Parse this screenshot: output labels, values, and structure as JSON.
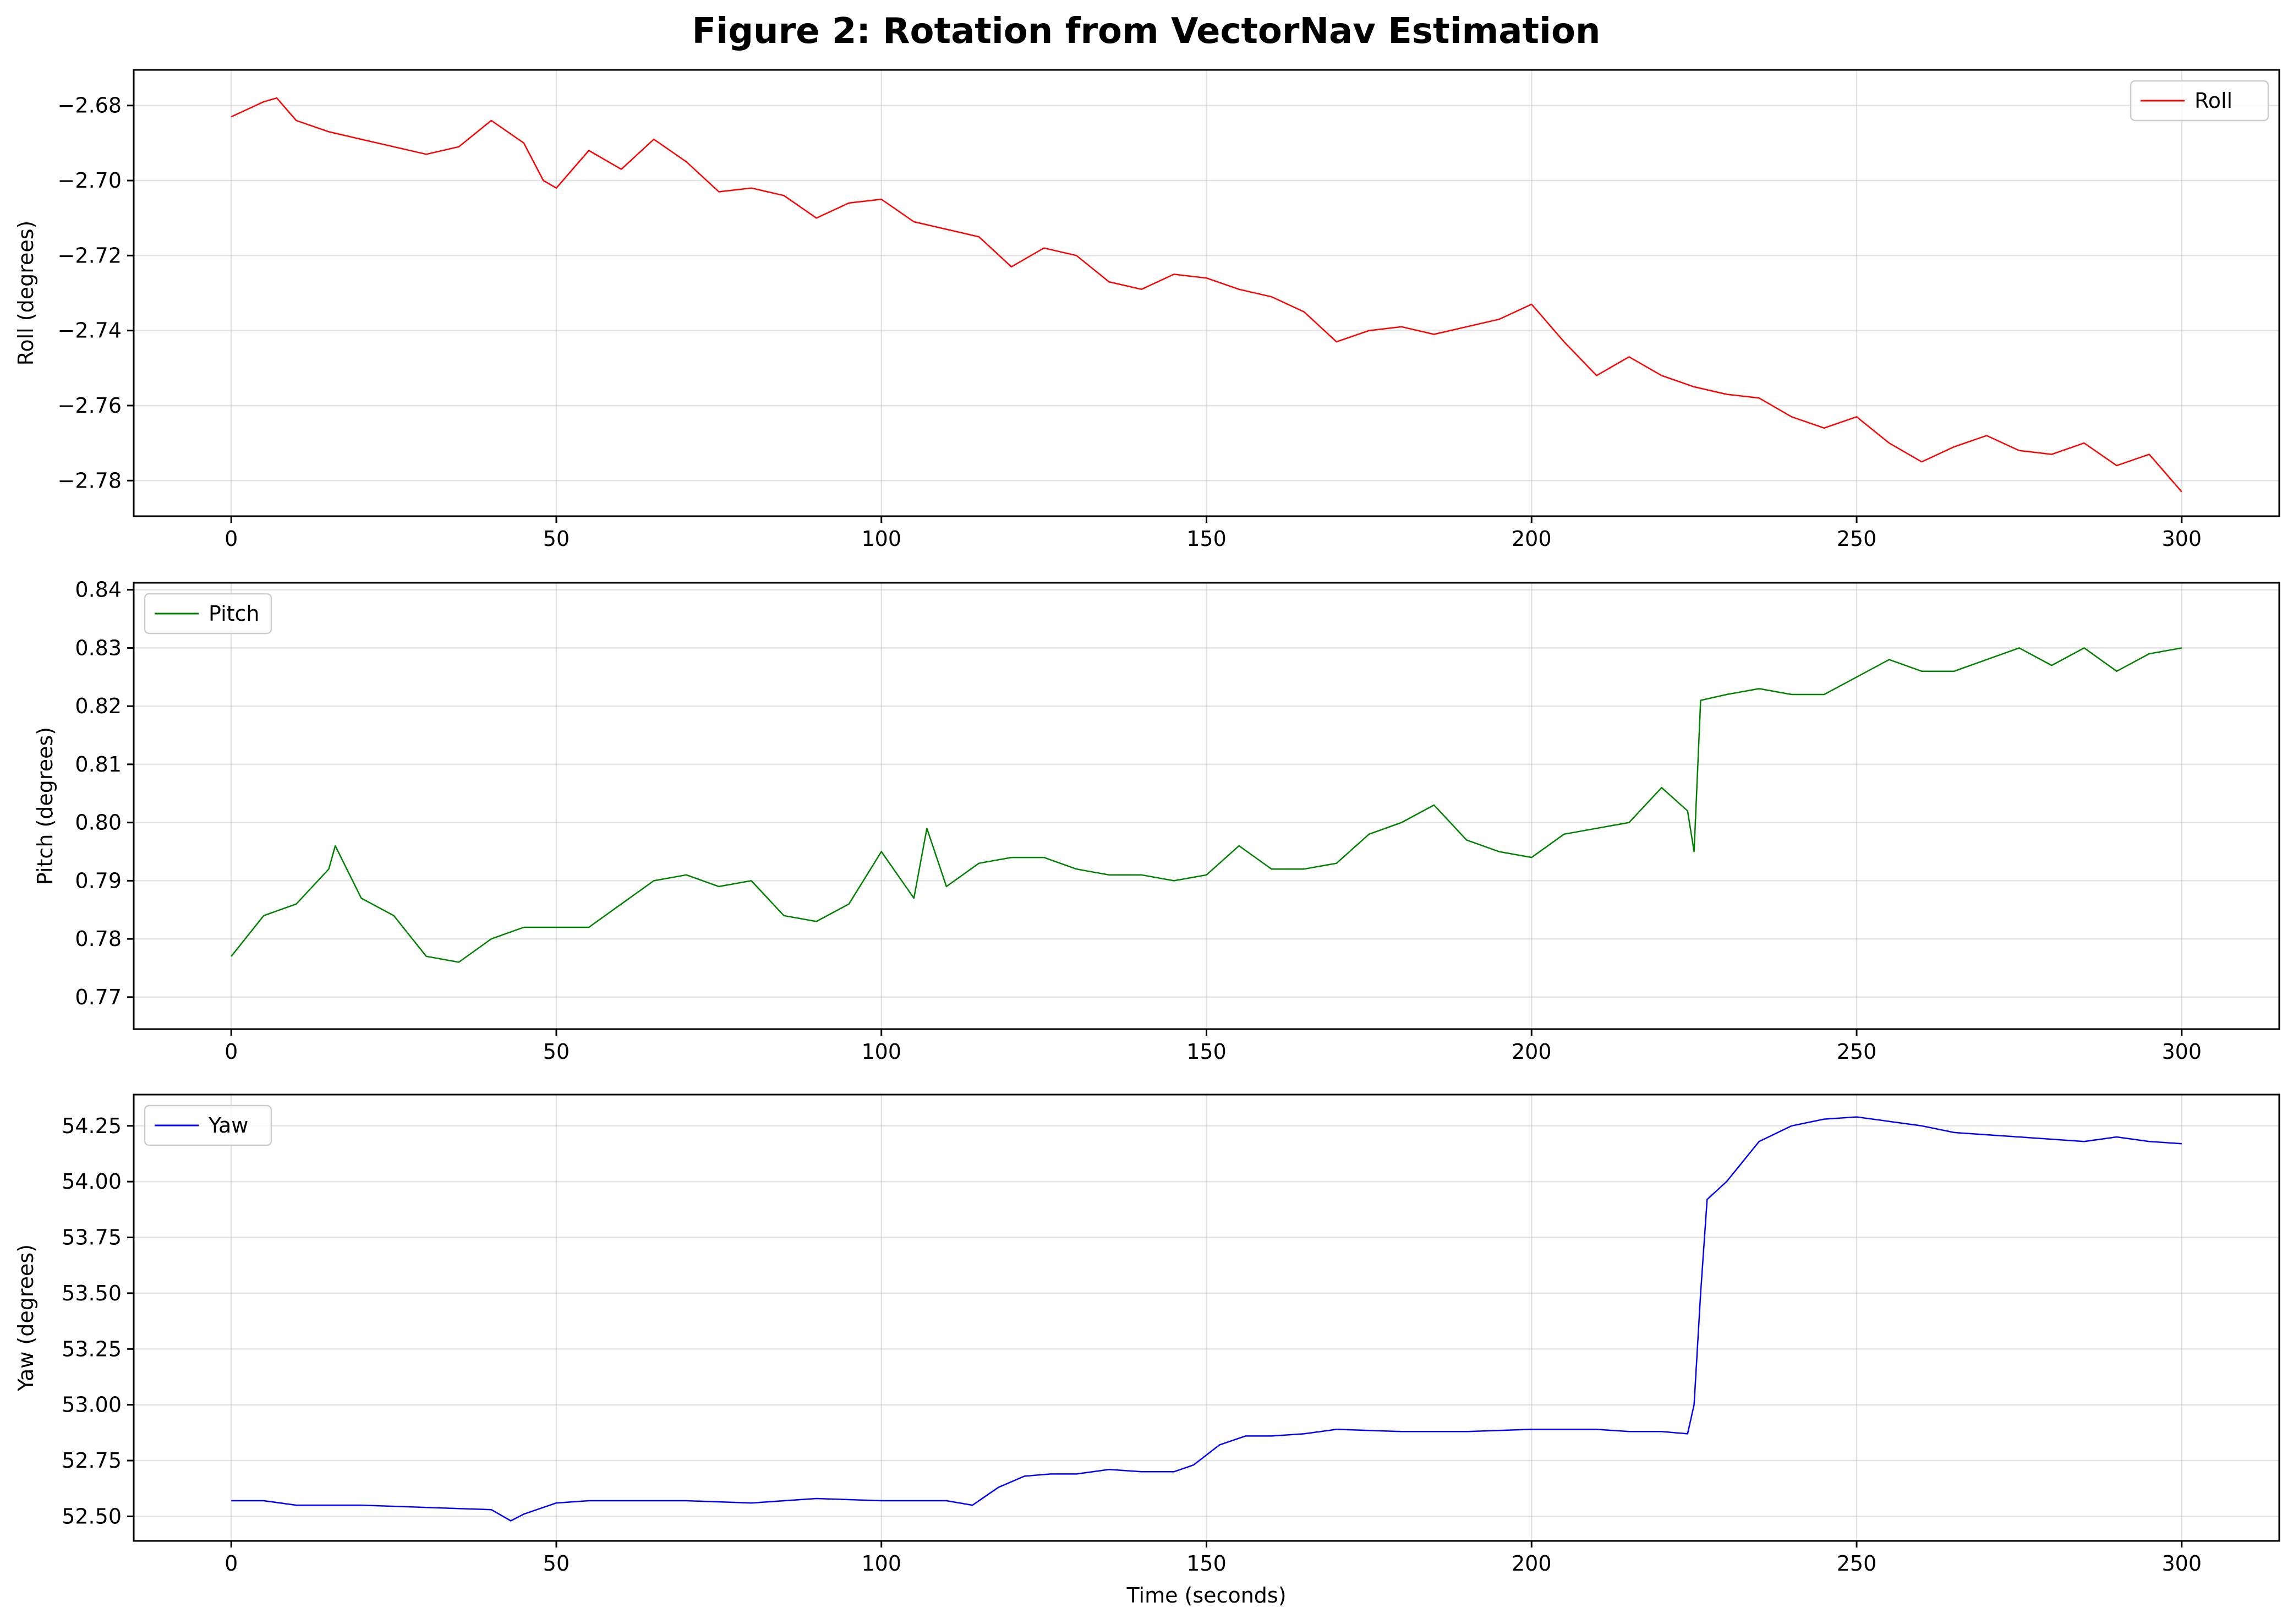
{
  "figure": {
    "title": "Figure 2: Rotation from VectorNav Estimation"
  },
  "chart_data": [
    {
      "type": "line",
      "xlabel": "",
      "ylabel": "Roll (degrees)",
      "xlim": [
        -15,
        315
      ],
      "ylim": [
        -2.7895,
        -2.6705
      ],
      "xticks": [
        0,
        50,
        100,
        150,
        200,
        250,
        300
      ],
      "xtick_labels": [
        "0",
        "50",
        "100",
        "150",
        "200",
        "250",
        "300"
      ],
      "yticks": [
        -2.68,
        -2.7,
        -2.72,
        -2.74,
        -2.76,
        -2.78
      ],
      "ytick_labels": [
        "−2.68",
        "−2.70",
        "−2.72",
        "−2.74",
        "−2.76",
        "−2.78"
      ],
      "grid": true,
      "legend_position": "upper right",
      "series": [
        {
          "name": "Roll",
          "color": "#ff0000",
          "x": [
            0,
            5,
            7,
            10,
            15,
            20,
            25,
            30,
            35,
            40,
            45,
            48,
            50,
            55,
            60,
            65,
            70,
            75,
            80,
            85,
            90,
            95,
            100,
            105,
            110,
            115,
            120,
            125,
            130,
            135,
            140,
            145,
            150,
            155,
            160,
            165,
            170,
            175,
            180,
            185,
            190,
            195,
            200,
            205,
            210,
            215,
            220,
            225,
            230,
            235,
            240,
            245,
            250,
            255,
            260,
            265,
            270,
            275,
            280,
            285,
            290,
            295,
            300
          ],
          "y": [
            -2.683,
            -2.679,
            -2.678,
            -2.684,
            -2.687,
            -2.689,
            -2.691,
            -2.693,
            -2.691,
            -2.684,
            -2.69,
            -2.7,
            -2.702,
            -2.692,
            -2.697,
            -2.689,
            -2.695,
            -2.703,
            -2.702,
            -2.704,
            -2.71,
            -2.706,
            -2.705,
            -2.711,
            -2.713,
            -2.715,
            -2.723,
            -2.718,
            -2.72,
            -2.727,
            -2.729,
            -2.725,
            -2.726,
            -2.729,
            -2.731,
            -2.735,
            -2.743,
            -2.74,
            -2.739,
            -2.741,
            -2.739,
            -2.737,
            -2.733,
            -2.743,
            -2.752,
            -2.747,
            -2.752,
            -2.755,
            -2.757,
            -2.758,
            -2.763,
            -2.766,
            -2.763,
            -2.77,
            -2.775,
            -2.771,
            -2.768,
            -2.772,
            -2.773,
            -2.77,
            -2.776,
            -2.773,
            -2.783
          ]
        }
      ]
    },
    {
      "type": "line",
      "xlabel": "",
      "ylabel": "Pitch (degrees)",
      "xlim": [
        -15,
        315
      ],
      "ylim": [
        0.7645,
        0.8412
      ],
      "xticks": [
        0,
        50,
        100,
        150,
        200,
        250,
        300
      ],
      "xtick_labels": [
        "0",
        "50",
        "100",
        "150",
        "200",
        "250",
        "300"
      ],
      "yticks": [
        0.77,
        0.78,
        0.79,
        0.8,
        0.81,
        0.82,
        0.83,
        0.84
      ],
      "ytick_labels": [
        "0.77",
        "0.78",
        "0.79",
        "0.80",
        "0.81",
        "0.82",
        "0.83",
        "0.84"
      ],
      "grid": true,
      "legend_position": "upper left",
      "series": [
        {
          "name": "Pitch",
          "color": "#008000",
          "x": [
            0,
            5,
            10,
            15,
            16,
            20,
            25,
            30,
            35,
            40,
            45,
            50,
            55,
            60,
            65,
            70,
            75,
            80,
            85,
            90,
            95,
            100,
            105,
            107,
            110,
            115,
            120,
            125,
            130,
            135,
            140,
            145,
            150,
            155,
            160,
            165,
            170,
            175,
            180,
            185,
            190,
            195,
            200,
            205,
            210,
            215,
            220,
            224,
            225,
            226,
            230,
            235,
            240,
            245,
            250,
            255,
            260,
            265,
            270,
            275,
            280,
            285,
            290,
            295,
            300
          ],
          "y": [
            0.777,
            0.784,
            0.786,
            0.792,
            0.796,
            0.787,
            0.784,
            0.777,
            0.776,
            0.78,
            0.782,
            0.782,
            0.782,
            0.786,
            0.79,
            0.791,
            0.789,
            0.79,
            0.784,
            0.783,
            0.786,
            0.795,
            0.787,
            0.799,
            0.789,
            0.793,
            0.794,
            0.794,
            0.792,
            0.791,
            0.791,
            0.79,
            0.791,
            0.796,
            0.792,
            0.792,
            0.793,
            0.798,
            0.8,
            0.803,
            0.797,
            0.795,
            0.794,
            0.798,
            0.799,
            0.8,
            0.806,
            0.802,
            0.795,
            0.821,
            0.822,
            0.823,
            0.822,
            0.822,
            0.825,
            0.828,
            0.826,
            0.826,
            0.828,
            0.83,
            0.827,
            0.83,
            0.826,
            0.829,
            0.83
          ]
        }
      ]
    },
    {
      "type": "line",
      "xlabel": "Time (seconds)",
      "ylabel": "Yaw (degrees)",
      "xlim": [
        -15,
        315
      ],
      "ylim": [
        52.39,
        54.39
      ],
      "xticks": [
        0,
        50,
        100,
        150,
        200,
        250,
        300
      ],
      "xtick_labels": [
        "0",
        "50",
        "100",
        "150",
        "200",
        "250",
        "300"
      ],
      "yticks": [
        52.5,
        52.75,
        53.0,
        53.25,
        53.5,
        53.75,
        54.0,
        54.25
      ],
      "ytick_labels": [
        "52.50",
        "52.75",
        "53.00",
        "53.25",
        "53.50",
        "53.75",
        "54.00",
        "54.25"
      ],
      "grid": true,
      "legend_position": "upper left",
      "series": [
        {
          "name": "Yaw",
          "color": "#0000ff",
          "x": [
            0,
            5,
            10,
            20,
            30,
            40,
            43,
            45,
            50,
            55,
            60,
            70,
            80,
            90,
            100,
            110,
            114,
            118,
            122,
            126,
            130,
            135,
            140,
            145,
            148,
            152,
            156,
            160,
            165,
            170,
            180,
            190,
            200,
            210,
            215,
            220,
            224,
            225,
            226,
            227,
            230,
            235,
            240,
            245,
            250,
            255,
            260,
            265,
            270,
            280,
            285,
            290,
            295,
            300
          ],
          "y": [
            52.57,
            52.57,
            52.55,
            52.55,
            52.54,
            52.53,
            52.48,
            52.51,
            52.56,
            52.57,
            52.57,
            52.57,
            52.56,
            52.58,
            52.57,
            52.57,
            52.55,
            52.63,
            52.68,
            52.69,
            52.69,
            52.71,
            52.7,
            52.7,
            52.73,
            52.82,
            52.86,
            52.86,
            52.87,
            52.89,
            52.88,
            52.88,
            52.89,
            52.89,
            52.88,
            52.88,
            52.87,
            53.0,
            53.5,
            53.92,
            54.0,
            54.18,
            54.25,
            54.28,
            54.29,
            54.27,
            54.25,
            54.22,
            54.21,
            54.19,
            54.18,
            54.2,
            54.18,
            54.17
          ]
        }
      ]
    }
  ]
}
